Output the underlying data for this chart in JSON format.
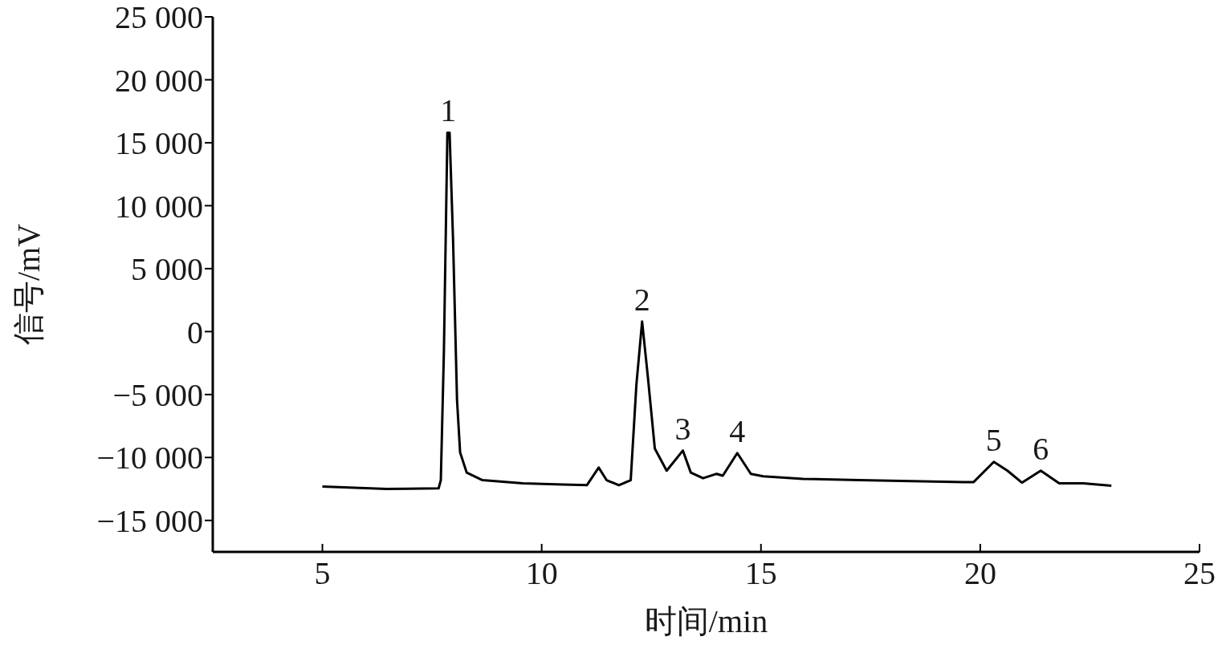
{
  "chart_data": {
    "type": "line",
    "xlabel": "时间/min",
    "ylabel": "信号/mV",
    "xlim": [
      2.5,
      25
    ],
    "xticks": [
      5,
      10,
      15,
      20,
      25
    ],
    "ylim": [
      -17500,
      25000
    ],
    "yticks": [
      {
        "value": -15000,
        "label": "−15 000"
      },
      {
        "value": -10000,
        "label": "−10 000"
      },
      {
        "value": -5000,
        "label": "−5 000"
      },
      0,
      {
        "value": 5000,
        "label": "5 000"
      },
      {
        "value": 10000,
        "label": "10 000"
      },
      {
        "value": 15000,
        "label": "15 000"
      },
      {
        "value": 20000,
        "label": "20 000"
      },
      {
        "value": 25000,
        "label": "25 000"
      }
    ],
    "grid": false,
    "legend": false,
    "series": [
      {
        "color": "#000000",
        "x": [
          5.0,
          6.46,
          7.65,
          7.7,
          7.77,
          7.85,
          7.9,
          7.98,
          8.07,
          8.14,
          8.29,
          8.65,
          9.57,
          10.48,
          11.03,
          11.3,
          11.48,
          11.76,
          12.03,
          12.16,
          12.29,
          12.42,
          12.58,
          12.85,
          13.22,
          13.4,
          13.68,
          13.99,
          14.13,
          14.46,
          14.77,
          15.05,
          15.96,
          17.24,
          19.61,
          19.85,
          20.31,
          20.62,
          20.95,
          21.38,
          21.8,
          22.35,
          22.99
        ],
        "values": [
          -12300,
          -12500,
          -12450,
          -11800,
          -1650,
          15800,
          15800,
          7200,
          -5450,
          -9600,
          -11200,
          -11800,
          -12050,
          -12150,
          -12200,
          -10800,
          -11800,
          -12200,
          -11800,
          -4200,
          800,
          -3550,
          -9300,
          -11050,
          -9450,
          -11200,
          -11650,
          -11300,
          -11450,
          -9650,
          -11300,
          -11500,
          -11700,
          -11800,
          -11950,
          -11950,
          -10350,
          -11050,
          -12000,
          -11050,
          -12050,
          -12050,
          -12250
        ]
      }
    ],
    "annotations": [
      {
        "text": "1",
        "x": 7.87,
        "y": 15800
      },
      {
        "text": "2",
        "x": 12.29,
        "y": 800
      },
      {
        "text": "3",
        "x": 13.22,
        "y": -9450
      },
      {
        "text": "4",
        "x": 14.46,
        "y": -9650
      },
      {
        "text": "5",
        "x": 20.31,
        "y": -10350
      },
      {
        "text": "6",
        "x": 21.38,
        "y": -11050
      }
    ]
  }
}
